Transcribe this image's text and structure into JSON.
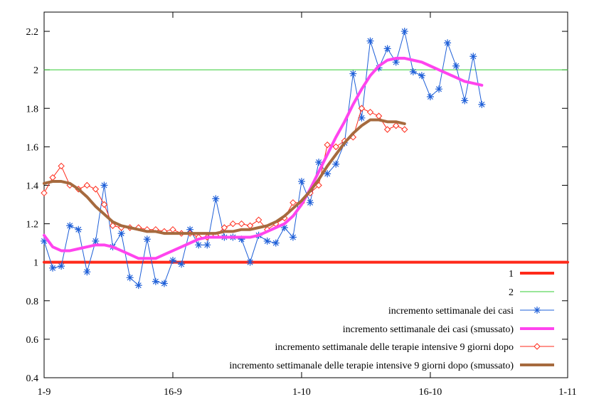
{
  "chart_data": {
    "type": "line",
    "title": "",
    "xlabel": "",
    "ylabel": "",
    "x_axis": {
      "unit": "day since 1-9",
      "range": [
        0,
        61
      ],
      "ticks": [
        {
          "value": 0,
          "label": "1-9"
        },
        {
          "value": 15,
          "label": "16-9"
        },
        {
          "value": 30,
          "label": "1-10"
        },
        {
          "value": 45,
          "label": "16-10"
        },
        {
          "value": 61,
          "label": "1-11"
        }
      ]
    },
    "y_axis": {
      "range": [
        0.4,
        2.3
      ],
      "ticks": [
        {
          "value": 0.4,
          "label": "0.4"
        },
        {
          "value": 0.6,
          "label": "0.6"
        },
        {
          "value": 0.8,
          "label": "0.8"
        },
        {
          "value": 1.0,
          "label": "1"
        },
        {
          "value": 1.2,
          "label": "1.2"
        },
        {
          "value": 1.4,
          "label": "1.4"
        },
        {
          "value": 1.6,
          "label": "1.6"
        },
        {
          "value": 1.8,
          "label": "1.8"
        },
        {
          "value": 2.0,
          "label": "2"
        },
        {
          "value": 2.2,
          "label": "2.2"
        }
      ]
    },
    "grid": false,
    "legend_position": "bottom-right",
    "series": [
      {
        "name": "1",
        "style": "line",
        "color": "#ff2a1a",
        "width": 4,
        "x": [
          0,
          61
        ],
        "y": [
          1.0,
          1.0
        ]
      },
      {
        "name": "2",
        "style": "line",
        "color": "#33cc33",
        "width": 1,
        "x": [
          0,
          61
        ],
        "y": [
          2.0,
          2.0
        ]
      },
      {
        "name": "incremento settimanale dei casi",
        "style": "line-asterisk",
        "color": "#1e5fd8",
        "width": 1,
        "x": [
          0,
          1,
          2,
          3,
          4,
          5,
          6,
          7,
          8,
          9,
          10,
          11,
          12,
          13,
          14,
          15,
          16,
          17,
          18,
          19,
          20,
          21,
          22,
          23,
          24,
          25,
          26,
          27,
          28,
          29,
          30,
          31,
          32,
          33,
          34,
          35,
          36,
          37,
          38,
          39,
          40,
          41,
          42,
          43,
          44,
          45,
          46,
          47,
          48,
          49,
          50,
          51
        ],
        "y": [
          1.11,
          0.97,
          0.98,
          1.19,
          1.17,
          0.95,
          1.11,
          1.4,
          1.08,
          1.15,
          0.92,
          0.88,
          1.12,
          0.9,
          0.89,
          1.01,
          0.99,
          1.17,
          1.09,
          1.09,
          1.33,
          1.13,
          1.13,
          1.12,
          1.0,
          1.14,
          1.11,
          1.1,
          1.18,
          1.13,
          1.42,
          1.31,
          1.52,
          1.46,
          1.51,
          1.62,
          1.98,
          1.75,
          2.15,
          2.01,
          2.11,
          2.04,
          2.2,
          1.99,
          1.97,
          1.86,
          1.9,
          2.14,
          2.02,
          1.84,
          2.07,
          1.82
        ]
      },
      {
        "name": "incremento settimanale dei casi (smussato)",
        "style": "line",
        "color": "#ff44ee",
        "width": 4,
        "x": [
          0,
          1,
          2,
          3,
          4,
          5,
          6,
          7,
          8,
          9,
          10,
          11,
          12,
          13,
          14,
          15,
          16,
          17,
          18,
          19,
          20,
          21,
          22,
          23,
          24,
          25,
          26,
          27,
          28,
          29,
          30,
          31,
          32,
          33,
          34,
          35,
          36,
          37,
          38,
          39,
          40,
          41,
          42,
          43,
          44,
          45,
          46,
          47,
          48,
          49,
          50,
          51
        ],
        "y": [
          1.14,
          1.08,
          1.06,
          1.06,
          1.07,
          1.08,
          1.09,
          1.09,
          1.08,
          1.06,
          1.04,
          1.02,
          1.02,
          1.02,
          1.04,
          1.06,
          1.08,
          1.1,
          1.12,
          1.13,
          1.13,
          1.13,
          1.13,
          1.13,
          1.13,
          1.14,
          1.16,
          1.18,
          1.2,
          1.24,
          1.3,
          1.38,
          1.47,
          1.56,
          1.65,
          1.73,
          1.82,
          1.9,
          1.97,
          2.02,
          2.05,
          2.06,
          2.06,
          2.05,
          2.04,
          2.02,
          2.0,
          1.98,
          1.96,
          1.94,
          1.93,
          1.92
        ]
      },
      {
        "name": "incremento settimanale delle  terapie intensive 9 giorni dopo",
        "style": "line-diamond",
        "color": "#ff2a1a",
        "width": 1,
        "x": [
          0,
          1,
          2,
          3,
          4,
          5,
          6,
          7,
          8,
          9,
          10,
          11,
          12,
          13,
          14,
          15,
          16,
          17,
          18,
          19,
          20,
          21,
          22,
          23,
          24,
          25,
          26,
          27,
          28,
          29,
          30,
          31,
          32,
          33,
          34,
          35,
          36,
          37,
          38,
          39,
          40,
          41,
          42
        ],
        "y": [
          1.36,
          1.44,
          1.5,
          1.4,
          1.38,
          1.4,
          1.38,
          1.3,
          1.19,
          1.18,
          1.18,
          1.18,
          1.17,
          1.17,
          1.16,
          1.17,
          1.15,
          1.15,
          1.13,
          1.13,
          1.14,
          1.18,
          1.2,
          1.2,
          1.19,
          1.22,
          1.17,
          1.2,
          1.23,
          1.31,
          1.31,
          1.36,
          1.4,
          1.61,
          1.6,
          1.63,
          1.65,
          1.8,
          1.78,
          1.76,
          1.69,
          1.71,
          1.69
        ]
      },
      {
        "name": "incremento settimanale delle terapie intensive 9 giorni dopo (smussato)",
        "style": "line",
        "color": "#a66a3e",
        "width": 4,
        "x": [
          0,
          1,
          2,
          3,
          4,
          5,
          6,
          7,
          8,
          9,
          10,
          11,
          12,
          13,
          14,
          15,
          16,
          17,
          18,
          19,
          20,
          21,
          22,
          23,
          24,
          25,
          26,
          27,
          28,
          29,
          30,
          31,
          32,
          33,
          34,
          35,
          36,
          37,
          38,
          39,
          40,
          41,
          42
        ],
        "y": [
          1.41,
          1.42,
          1.42,
          1.41,
          1.38,
          1.34,
          1.29,
          1.25,
          1.21,
          1.19,
          1.18,
          1.17,
          1.16,
          1.16,
          1.15,
          1.15,
          1.15,
          1.15,
          1.15,
          1.15,
          1.15,
          1.16,
          1.16,
          1.17,
          1.17,
          1.18,
          1.19,
          1.21,
          1.24,
          1.28,
          1.32,
          1.37,
          1.43,
          1.5,
          1.56,
          1.62,
          1.67,
          1.71,
          1.74,
          1.74,
          1.73,
          1.73,
          1.72
        ]
      }
    ]
  }
}
